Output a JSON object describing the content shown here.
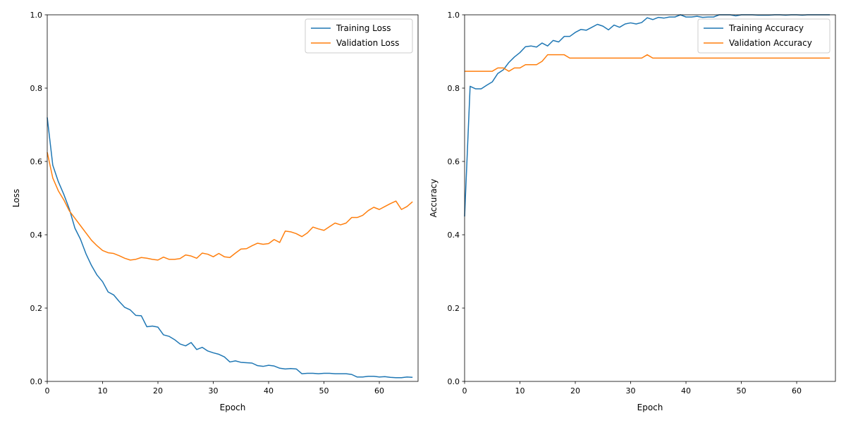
{
  "chart_data": [
    {
      "type": "line",
      "xlabel": "Epoch",
      "ylabel": "Loss",
      "xlim": [
        0,
        67
      ],
      "ylim": [
        0,
        1.0
      ],
      "x_ticks": [
        0,
        10,
        20,
        30,
        40,
        50,
        60
      ],
      "y_ticks": [
        0.0,
        0.2,
        0.4,
        0.6,
        0.8,
        1.0
      ],
      "grid": false,
      "legend_position": "top-right",
      "series": [
        {
          "name": "Training Loss",
          "color": "#1f77b4",
          "values": [
            0.72,
            0.59,
            0.545,
            0.51,
            0.47,
            0.418,
            0.388,
            0.348,
            0.316,
            0.29,
            0.272,
            0.244,
            0.236,
            0.218,
            0.202,
            0.195,
            0.18,
            0.179,
            0.149,
            0.151,
            0.148,
            0.127,
            0.123,
            0.114,
            0.102,
            0.097,
            0.106,
            0.087,
            0.093,
            0.083,
            0.078,
            0.074,
            0.067,
            0.053,
            0.056,
            0.052,
            0.051,
            0.05,
            0.043,
            0.041,
            0.044,
            0.042,
            0.036,
            0.034,
            0.035,
            0.034,
            0.021,
            0.022,
            0.022,
            0.021,
            0.022,
            0.022,
            0.021,
            0.021,
            0.021,
            0.019,
            0.012,
            0.012,
            0.014,
            0.014,
            0.012,
            0.013,
            0.011,
            0.01,
            0.01,
            0.012,
            0.011
          ]
        },
        {
          "name": "Validation Loss",
          "color": "#ff7f0e",
          "values": [
            0.625,
            0.555,
            0.52,
            0.495,
            0.465,
            0.445,
            0.425,
            0.405,
            0.385,
            0.37,
            0.357,
            0.351,
            0.349,
            0.343,
            0.336,
            0.331,
            0.333,
            0.338,
            0.336,
            0.333,
            0.331,
            0.339,
            0.333,
            0.333,
            0.335,
            0.345,
            0.342,
            0.336,
            0.35,
            0.347,
            0.34,
            0.349,
            0.34,
            0.338,
            0.35,
            0.361,
            0.362,
            0.37,
            0.377,
            0.374,
            0.376,
            0.387,
            0.379,
            0.41,
            0.408,
            0.403,
            0.395,
            0.405,
            0.421,
            0.416,
            0.412,
            0.422,
            0.432,
            0.427,
            0.432,
            0.447,
            0.447,
            0.453,
            0.466,
            0.475,
            0.469,
            0.477,
            0.485,
            0.492,
            0.469,
            0.477,
            0.49
          ]
        }
      ]
    },
    {
      "type": "line",
      "xlabel": "Epoch",
      "ylabel": "Accuracy",
      "xlim": [
        0,
        67
      ],
      "ylim": [
        0,
        1.0
      ],
      "x_ticks": [
        0,
        10,
        20,
        30,
        40,
        50,
        60
      ],
      "y_ticks": [
        0.0,
        0.2,
        0.4,
        0.6,
        0.8,
        1.0
      ],
      "grid": false,
      "legend_position": "top-right",
      "series": [
        {
          "name": "Training Accuracy",
          "color": "#1f77b4",
          "values": [
            0.45,
            0.805,
            0.798,
            0.798,
            0.808,
            0.817,
            0.84,
            0.85,
            0.87,
            0.885,
            0.897,
            0.913,
            0.915,
            0.912,
            0.923,
            0.915,
            0.93,
            0.926,
            0.941,
            0.941,
            0.952,
            0.96,
            0.958,
            0.966,
            0.974,
            0.969,
            0.959,
            0.972,
            0.966,
            0.975,
            0.978,
            0.975,
            0.979,
            0.992,
            0.987,
            0.993,
            0.991,
            0.994,
            0.994,
            1.0,
            0.994,
            0.994,
            0.996,
            0.993,
            0.994,
            0.994,
            1.0,
            1.0,
            1.0,
            0.997,
            1.0,
            1.0,
            1.0,
            0.999,
            0.999,
            0.999,
            1.0,
            1.0,
            0.999,
            1.0,
            1.0,
            0.999,
            1.0,
            1.0,
            1.0,
            1.0,
            1.0
          ]
        },
        {
          "name": "Validation Accuracy",
          "color": "#ff7f0e",
          "values": [
            0.846,
            0.846,
            0.846,
            0.846,
            0.846,
            0.846,
            0.855,
            0.855,
            0.846,
            0.855,
            0.855,
            0.864,
            0.864,
            0.864,
            0.873,
            0.891,
            0.891,
            0.891,
            0.891,
            0.882,
            0.882,
            0.882,
            0.882,
            0.882,
            0.882,
            0.882,
            0.882,
            0.882,
            0.882,
            0.882,
            0.882,
            0.882,
            0.882,
            0.891,
            0.882,
            0.882,
            0.882,
            0.882,
            0.882,
            0.882,
            0.882,
            0.882,
            0.882,
            0.882,
            0.882,
            0.882,
            0.882,
            0.882,
            0.882,
            0.882,
            0.882,
            0.882,
            0.882,
            0.882,
            0.882,
            0.882,
            0.882,
            0.882,
            0.882,
            0.882,
            0.882,
            0.882,
            0.882,
            0.882,
            0.882,
            0.882,
            0.882
          ]
        }
      ]
    }
  ]
}
